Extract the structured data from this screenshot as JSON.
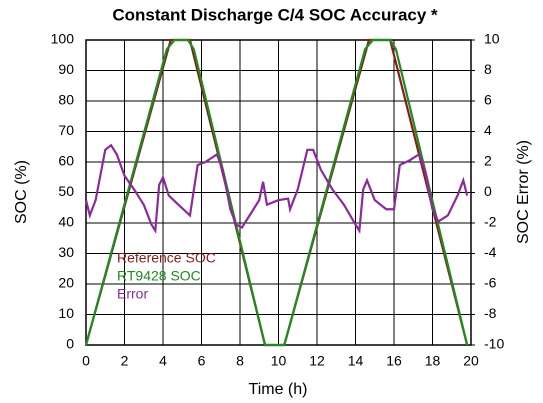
{
  "chart_data": {
    "type": "line",
    "title": "Constant Discharge C/4 SOC Accuracy *",
    "xlabel": "Time (h)",
    "ylabel": "SOC (%)",
    "y2label": "SOC Error (%)",
    "xlim": [
      0,
      20
    ],
    "xticks": [
      0,
      2,
      4,
      6,
      8,
      10,
      12,
      14,
      16,
      18,
      20
    ],
    "ylim": [
      0,
      100
    ],
    "yticks": [
      0,
      10,
      20,
      30,
      40,
      50,
      60,
      70,
      80,
      90,
      100
    ],
    "y2lim": [
      -10,
      10
    ],
    "y2ticks": [
      -10,
      -8,
      -6,
      -4,
      -2,
      0,
      2,
      4,
      6,
      8,
      10
    ],
    "grid": true,
    "legend": "lower left",
    "series": [
      {
        "name": "Reference  SOC",
        "color": "#8b1a1a",
        "x": [
          0,
          4.4,
          5.4,
          9.3,
          10.3,
          14.7,
          15.8,
          19.8
        ],
        "values": [
          0,
          100,
          100,
          0,
          0,
          100,
          100,
          0
        ]
      },
      {
        "name": "RT9428 SOC",
        "color": "#1e8c1e",
        "x": [
          0,
          4.2,
          4.6,
          5.3,
          5.6,
          9.3,
          10.3,
          14.5,
          14.9,
          15.8,
          16.1,
          19.8
        ],
        "values": [
          0,
          97,
          100,
          100,
          97,
          0,
          0,
          97,
          100,
          100,
          97,
          0
        ]
      },
      {
        "name": "Error",
        "color": "#8b2a9b",
        "axis": "y2",
        "x": [
          0,
          0.2,
          0.5,
          1.0,
          1.3,
          1.6,
          2.0,
          2.5,
          3.0,
          3.4,
          3.6,
          3.8,
          4.0,
          4.3,
          4.8,
          5.4,
          5.8,
          6.2,
          6.8,
          7.1,
          7.5,
          7.8,
          8.1,
          8.5,
          9.0,
          9.2,
          9.4,
          10.0,
          10.5,
          10.6,
          11.0,
          11.5,
          11.8,
          12.2,
          12.8,
          13.4,
          14.0,
          14.2,
          14.4,
          14.6,
          15.0,
          15.6,
          16.0,
          16.3,
          16.8,
          17.3,
          17.6,
          18.0,
          18.3,
          18.8,
          19.3,
          19.6,
          19.8
        ],
        "values": [
          -0.5,
          -1.5,
          -0.5,
          2.8,
          3.1,
          2.5,
          1.1,
          0.2,
          -0.8,
          -2.1,
          -2.5,
          0.5,
          1.0,
          -0.2,
          -0.8,
          -1.5,
          1.8,
          2.0,
          2.5,
          1.5,
          -1.1,
          -2.1,
          -2.3,
          -1.5,
          -0.5,
          0.7,
          -0.8,
          -0.5,
          -0.4,
          -1.1,
          0.2,
          2.8,
          2.8,
          1.5,
          0.2,
          -0.8,
          -2.1,
          -2.5,
          0.2,
          0.8,
          -0.5,
          -1.1,
          -1.1,
          1.8,
          2.1,
          2.5,
          1.5,
          -1.1,
          -1.9,
          -1.5,
          -0.2,
          0.8,
          -0.2
        ]
      }
    ]
  }
}
